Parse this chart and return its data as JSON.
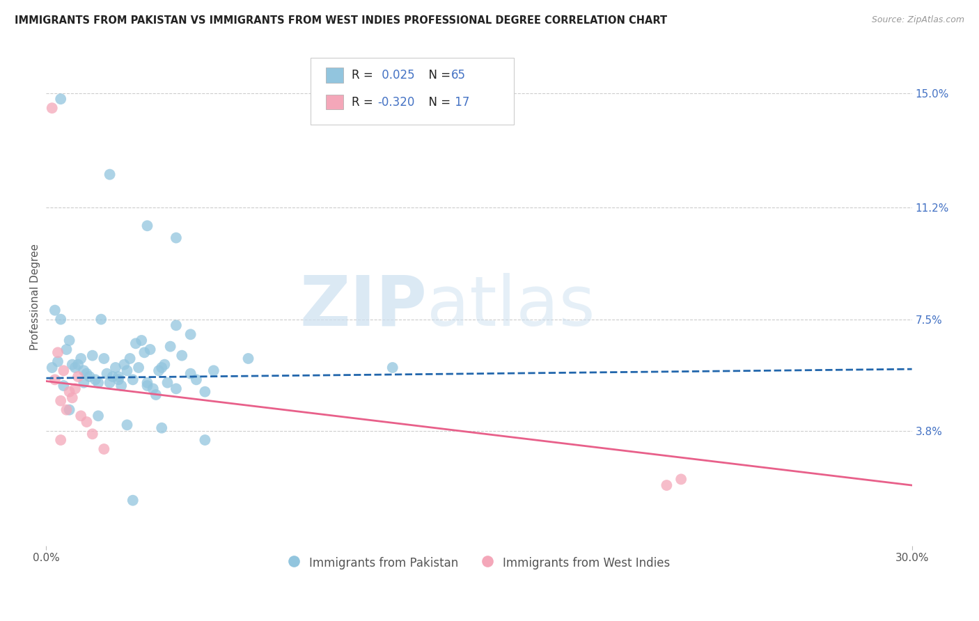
{
  "title": "IMMIGRANTS FROM PAKISTAN VS IMMIGRANTS FROM WEST INDIES PROFESSIONAL DEGREE CORRELATION CHART",
  "source": "Source: ZipAtlas.com",
  "ylabel": "Professional Degree",
  "xlim": [
    0.0,
    30.0
  ],
  "ylim": [
    0.0,
    16.5
  ],
  "x_tick_labels": [
    "0.0%",
    "30.0%"
  ],
  "x_tick_vals": [
    0.0,
    30.0
  ],
  "y_tick_labels": [
    "3.8%",
    "7.5%",
    "11.2%",
    "15.0%"
  ],
  "y_tick_vals": [
    3.8,
    7.5,
    11.2,
    15.0
  ],
  "blue_R": 0.025,
  "blue_N": 65,
  "pink_R": -0.32,
  "pink_N": 17,
  "blue_color": "#92c5de",
  "pink_color": "#f4a7b9",
  "blue_line_color": "#2166ac",
  "pink_line_color": "#e8608a",
  "legend_label_blue": "Immigrants from Pakistan",
  "legend_label_pink": "Immigrants from West Indies",
  "watermark_zip": "ZIP",
  "watermark_atlas": "atlas",
  "background_color": "#ffffff",
  "grid_color": "#cccccc",
  "blue_line_y0": 5.55,
  "blue_line_y1": 5.85,
  "pink_line_y0": 5.45,
  "pink_line_y1": 2.0,
  "blue_scatter_x": [
    0.5,
    2.2,
    3.5,
    4.5,
    0.3,
    0.5,
    0.7,
    0.8,
    1.0,
    1.1,
    1.2,
    1.3,
    1.4,
    1.5,
    1.6,
    1.7,
    1.8,
    1.9,
    2.0,
    2.1,
    2.2,
    2.3,
    2.4,
    2.5,
    2.6,
    2.7,
    2.8,
    2.9,
    3.0,
    3.1,
    3.2,
    3.3,
    3.4,
    3.5,
    3.6,
    3.7,
    3.8,
    3.9,
    4.0,
    4.1,
    4.2,
    4.3,
    4.5,
    4.7,
    5.0,
    5.2,
    5.5,
    5.8,
    0.2,
    0.4,
    0.6,
    0.9,
    1.3,
    2.5,
    3.5,
    4.5,
    0.8,
    1.8,
    2.8,
    4.0,
    5.5,
    12.0,
    7.0,
    5.0,
    3.0
  ],
  "blue_scatter_y": [
    14.8,
    12.3,
    10.6,
    10.2,
    7.8,
    7.5,
    6.5,
    6.8,
    5.9,
    6.0,
    6.2,
    5.8,
    5.7,
    5.6,
    6.3,
    5.5,
    5.4,
    7.5,
    6.2,
    5.7,
    5.4,
    5.6,
    5.9,
    5.5,
    5.3,
    6.0,
    5.8,
    6.2,
    5.5,
    6.7,
    5.9,
    6.8,
    6.4,
    5.3,
    6.5,
    5.2,
    5.0,
    5.8,
    5.9,
    6.0,
    5.4,
    6.6,
    7.3,
    6.3,
    5.7,
    5.5,
    5.1,
    5.8,
    5.9,
    6.1,
    5.3,
    6.0,
    5.4,
    5.6,
    5.4,
    5.2,
    4.5,
    4.3,
    4.0,
    3.9,
    3.5,
    5.9,
    6.2,
    7.0,
    1.5
  ],
  "pink_scatter_x": [
    0.2,
    0.3,
    0.4,
    0.5,
    0.6,
    0.7,
    0.8,
    0.9,
    1.0,
    1.1,
    1.2,
    1.4,
    1.6,
    2.0,
    0.5,
    21.5,
    22.0
  ],
  "pink_scatter_y": [
    14.5,
    5.5,
    6.4,
    4.8,
    5.8,
    4.5,
    5.1,
    4.9,
    5.2,
    5.6,
    4.3,
    4.1,
    3.7,
    3.2,
    3.5,
    2.0,
    2.2
  ]
}
